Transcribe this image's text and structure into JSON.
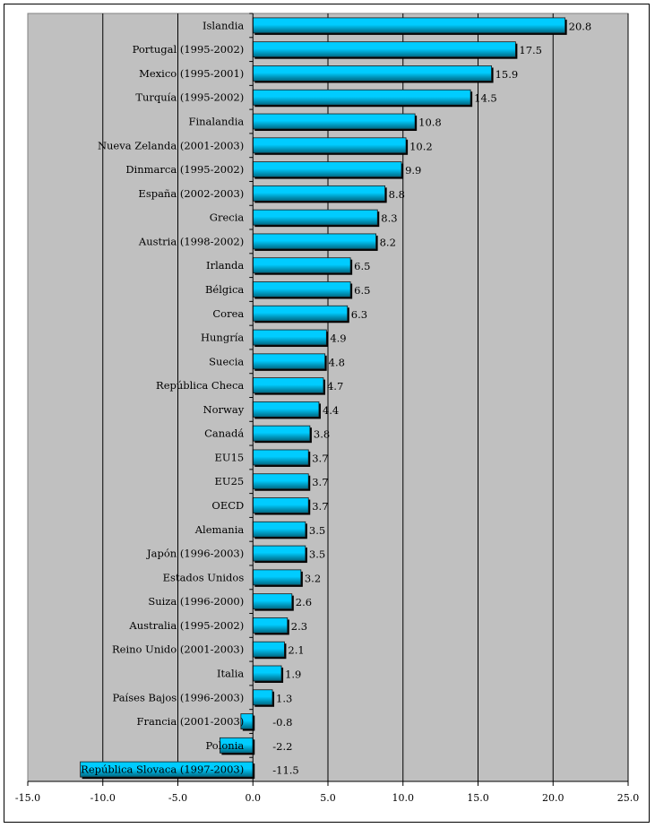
{
  "chart_data": {
    "type": "bar",
    "orientation": "horizontal",
    "title": "",
    "xlabel": "",
    "ylabel": "",
    "xlim": [
      -15,
      25
    ],
    "x_ticks": [
      -15,
      -10,
      -5,
      0,
      5,
      10,
      15,
      20,
      25
    ],
    "x_tick_labels": [
      "-15.0",
      "-10.0",
      "-5.0",
      "0.0",
      "5.0",
      "10.0",
      "15.0",
      "20.0",
      "25.0"
    ],
    "grid": "vertical",
    "legend": "none",
    "categories": [
      "Islandia",
      "Portugal (1995-2002)",
      "Mexico (1995-2001)",
      "Turquía (1995-2002)",
      "Finalandia",
      "Nueva Zelanda (2001-2003)",
      "Dinmarca (1995-2002)",
      "España (2002-2003)",
      "Grecia",
      "Austria (1998-2002)",
      "Irlanda",
      "Bélgica",
      "Corea",
      "Hungría",
      "Suecia",
      "República Checa",
      "Norway",
      "Canadá",
      "EU15",
      "EU25",
      "OECD",
      "Alemania",
      "Japón (1996-2003)",
      "Estados Unidos",
      "Suiza (1996-2000)",
      "Australia (1995-2002)",
      "Reino Unido (2001-2003)",
      "Italia",
      "Países Bajos (1996-2003)",
      "Francia (2001-2003)",
      "Polonia",
      "República Slovaca (1997-2003)"
    ],
    "values": [
      20.8,
      17.5,
      15.9,
      14.5,
      10.8,
      10.2,
      9.9,
      8.8,
      8.3,
      8.2,
      6.5,
      6.5,
      6.3,
      4.9,
      4.8,
      4.7,
      4.4,
      3.8,
      3.7,
      3.7,
      3.7,
      3.5,
      3.5,
      3.2,
      2.6,
      2.3,
      2.1,
      1.9,
      1.3,
      -0.8,
      -2.2,
      -11.5
    ],
    "value_labels": [
      "20.8",
      "17.5",
      "15.9",
      "14.5",
      "10.8",
      "10.2",
      "9.9",
      "8.8",
      "8.3",
      "8.2",
      "6.5",
      "6.5",
      "6.3",
      "4.9",
      "4.8",
      "4.7",
      "4.4",
      "3.8",
      "3.7",
      "3.7",
      "3.7",
      "3.5",
      "3.5",
      "3.2",
      "2.6",
      "2.3",
      "2.1",
      "1.9",
      "1.3",
      "-0.8",
      "-2.2",
      "-11.5"
    ],
    "colors": {
      "plot_background": "#c0c0c0",
      "bar_top": "#00ccff",
      "bar_bottom": "#006680",
      "gridline": "#000000"
    }
  }
}
